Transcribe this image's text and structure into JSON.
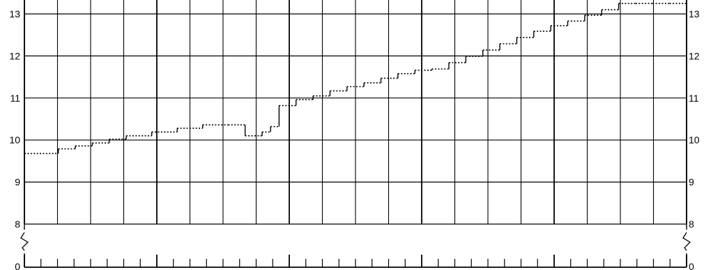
{
  "chart_data": {
    "type": "line",
    "title": "",
    "xlabel": "",
    "ylabel": "",
    "grid": true,
    "legend": "none",
    "y_axis_break": true,
    "ylim": [
      8,
      13
    ],
    "y_ticks": [
      13,
      12,
      11,
      10,
      9,
      8
    ],
    "baseline_tick_label": "0",
    "x": [
      0,
      4,
      6,
      8,
      10,
      12,
      15,
      18,
      21,
      24,
      26,
      28,
      29,
      30,
      32,
      34,
      36,
      38,
      40,
      42,
      44,
      46,
      48,
      50,
      52,
      54,
      56,
      58,
      60,
      62,
      64,
      66,
      68,
      70,
      72,
      74,
      76,
      78
    ],
    "series": [
      {
        "values": [
          9.68,
          9.79,
          9.86,
          9.93,
          10.02,
          10.1,
          10.19,
          10.28,
          10.36,
          10.36,
          10.1,
          10.19,
          10.32,
          10.82,
          10.96,
          11.05,
          11.17,
          11.27,
          11.36,
          11.47,
          11.58,
          11.66,
          11.69,
          11.84,
          11.99,
          12.14,
          12.29,
          12.44,
          12.59,
          12.72,
          12.83,
          12.97,
          13.1,
          13.25,
          13.25,
          13.25,
          13.25,
          13.25
        ],
        "style": "dotted-step"
      }
    ]
  }
}
